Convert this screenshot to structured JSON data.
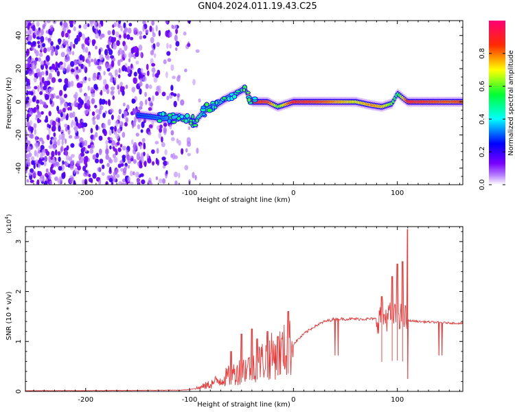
{
  "title": "GN04.2024.011.19.43.C25",
  "chart_data": [
    {
      "type": "heatmap",
      "xlabel": "Height of straight line (km)",
      "ylabel": "Frequency (Hz)",
      "xlim": [
        -258,
        163
      ],
      "ylim": [
        -50,
        49
      ],
      "xticks": [
        -200,
        -100,
        0,
        100
      ],
      "yticks": [
        -40,
        -20,
        0,
        20,
        40
      ],
      "colorbar": {
        "label": "Normalized spectral amplitude",
        "range": [
          0,
          1
        ],
        "ticks": [
          0.0,
          0.2,
          0.4,
          0.6,
          0.8
        ],
        "colors": [
          "#ffffff",
          "#8a00ff",
          "#0000ff",
          "#00ffff",
          "#00ff00",
          "#ffff00",
          "#ff0000",
          "#ff0088"
        ]
      },
      "ridge": {
        "x": [
          -150,
          -125,
          -110,
          -95,
          -85,
          -75,
          -65,
          -55,
          -47,
          -40,
          -25,
          -15,
          0,
          20,
          40,
          60,
          75,
          85,
          95,
          100,
          110,
          130,
          150,
          163
        ],
        "freq": [
          -8,
          -10,
          -9,
          -12,
          -5,
          -2,
          2,
          5,
          8,
          0,
          0,
          -3,
          0,
          0,
          0,
          0,
          -2,
          -3,
          -1,
          5,
          0,
          0,
          0,
          0
        ],
        "amplitude": [
          0.25,
          0.3,
          0.4,
          0.45,
          0.5,
          0.4,
          0.45,
          0.5,
          0.55,
          0.95,
          0.9,
          0.6,
          0.95,
          0.9,
          0.8,
          0.7,
          0.8,
          0.75,
          0.6,
          0.5,
          0.95,
          0.9,
          0.85,
          0.9
        ]
      },
      "noise_region_x": [
        -258,
        -95
      ]
    },
    {
      "type": "line",
      "xlabel": "Height of straight line (km)",
      "ylabel": "SNR (10 * v/v)",
      "y_multiplier": "(x10",
      "y_multiplier_exp": "4",
      "y_multiplier_close": ")",
      "xlim": [
        -258,
        163
      ],
      "ylim": [
        0,
        3.3
      ],
      "xticks": [
        -200,
        -100,
        0,
        100
      ],
      "yticks": [
        0,
        1,
        2,
        3
      ],
      "series": [
        {
          "name": "SNR",
          "color": "#e83838",
          "x": [
            -258,
            -200,
            -150,
            -110,
            -100,
            -90,
            -80,
            -70,
            -60,
            -50,
            -40,
            -30,
            -20,
            -10,
            0,
            10,
            20,
            30,
            40,
            50,
            60,
            70,
            80,
            90,
            100,
            105,
            110,
            120,
            140,
            163
          ],
          "y": [
            0.01,
            0.01,
            0.015,
            0.02,
            0.03,
            0.08,
            0.15,
            0.25,
            0.35,
            0.45,
            0.55,
            0.65,
            0.75,
            0.85,
            0.95,
            1.15,
            1.3,
            1.4,
            1.45,
            1.45,
            1.45,
            1.45,
            1.45,
            1.5,
            1.55,
            1.5,
            1.42,
            1.4,
            1.38,
            1.36
          ]
        }
      ],
      "spikes": [
        {
          "x": -60,
          "y": 0.8
        },
        {
          "x": -50,
          "y": 1.15
        },
        {
          "x": -40,
          "y": 1.25
        },
        {
          "x": -35,
          "y": 1.05
        },
        {
          "x": -25,
          "y": 1.2
        },
        {
          "x": -15,
          "y": 1.1
        },
        {
          "x": -5,
          "y": 1.6
        },
        {
          "x": 85,
          "y": 1.9
        },
        {
          "x": 95,
          "y": 2.3
        },
        {
          "x": 100,
          "y": 2.55
        },
        {
          "x": 105,
          "y": 2.6
        },
        {
          "x": 110,
          "y": 3.25
        }
      ],
      "dips": [
        {
          "x": 40,
          "y": 0.72
        },
        {
          "x": 43,
          "y": 0.72
        },
        {
          "x": 110,
          "y": 0.25
        },
        {
          "x": 140,
          "y": 0.72
        },
        {
          "x": 143,
          "y": 0.72
        }
      ]
    }
  ]
}
